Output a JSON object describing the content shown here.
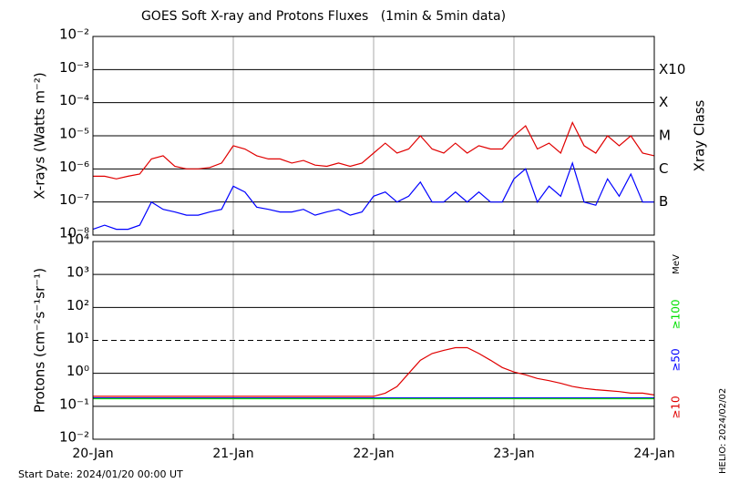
{
  "title": "GOES Soft X-ray and Protons Fluxes   (1min & 5min data)",
  "footer": "Start Date: 2024/01/20 00:00 UT",
  "side_note": "HELIO: 2024/02/02",
  "chart_data": [
    {
      "type": "line",
      "ylabel": "X-rays (Watts m⁻²)",
      "y2label": "Xray Class",
      "log_y": true,
      "grid": true,
      "x": [
        0,
        2,
        4,
        6,
        8,
        10,
        12,
        14,
        16,
        18,
        20,
        22,
        24,
        26,
        28,
        30,
        32,
        34,
        36,
        38,
        40,
        42,
        44,
        46,
        48,
        50,
        52,
        54,
        56,
        58,
        60,
        62,
        64,
        66,
        68,
        70,
        72,
        74,
        76,
        78,
        80,
        82,
        84,
        86,
        88,
        90,
        92,
        94,
        96
      ],
      "xlim": [
        0,
        96
      ],
      "ylim": [
        1e-08,
        0.01
      ],
      "yticks": [
        {
          "value": 0.01,
          "label": "10⁻²"
        },
        {
          "value": 0.001,
          "label": "10⁻³"
        },
        {
          "value": 0.0001,
          "label": "10⁻⁴"
        },
        {
          "value": 1e-05,
          "label": "10⁻⁵"
        },
        {
          "value": 1e-06,
          "label": "10⁻⁶"
        },
        {
          "value": 1e-07,
          "label": "10⁻⁷"
        },
        {
          "value": 1e-08,
          "label": "10⁻⁸"
        }
      ],
      "class_labels": [
        {
          "value": 0.001,
          "label": "X10"
        },
        {
          "value": 0.0001,
          "label": "X"
        },
        {
          "value": 1e-05,
          "label": "M"
        },
        {
          "value": 1e-06,
          "label": "C"
        },
        {
          "value": 1e-07,
          "label": "B"
        }
      ],
      "series": [
        {
          "color": "#e00000",
          "values": [
            6e-07,
            6e-07,
            5e-07,
            6e-07,
            7e-07,
            2e-06,
            2.5e-06,
            1.2e-06,
            1e-06,
            1e-06,
            1.1e-06,
            1.5e-06,
            5e-06,
            4e-06,
            2.5e-06,
            2e-06,
            2e-06,
            1.5e-06,
            1.8e-06,
            1.3e-06,
            1.2e-06,
            1.5e-06,
            1.2e-06,
            1.5e-06,
            3e-06,
            6e-06,
            3e-06,
            4e-06,
            1e-05,
            4e-06,
            3e-06,
            6e-06,
            3e-06,
            5e-06,
            4e-06,
            4e-06,
            1e-05,
            2e-05,
            4e-06,
            6e-06,
            3e-06,
            2.5e-05,
            5e-06,
            3e-06,
            1e-05,
            5e-06,
            1e-05,
            3e-06,
            2.5e-06
          ]
        },
        {
          "color": "#0000ff",
          "values": [
            1.5e-08,
            2e-08,
            1.5e-08,
            1.5e-08,
            2e-08,
            1e-07,
            6e-08,
            5e-08,
            4e-08,
            4e-08,
            5e-08,
            6e-08,
            3e-07,
            2e-07,
            7e-08,
            6e-08,
            5e-08,
            5e-08,
            6e-08,
            4e-08,
            5e-08,
            6e-08,
            4e-08,
            5e-08,
            1.5e-07,
            2e-07,
            1e-07,
            1.5e-07,
            4e-07,
            1e-07,
            1e-07,
            2e-07,
            1e-07,
            2e-07,
            1e-07,
            1e-07,
            5e-07,
            1e-06,
            1e-07,
            3e-07,
            1.5e-07,
            1.5e-06,
            1e-07,
            8e-08,
            5e-07,
            1.5e-07,
            7e-07,
            1e-07,
            1e-07
          ]
        }
      ]
    },
    {
      "type": "line",
      "ylabel": "Protons (cm⁻²s⁻¹sr⁻¹)",
      "unit_label": "MeV",
      "log_y": true,
      "grid": true,
      "threshold": 10,
      "x": [
        0,
        2,
        4,
        6,
        8,
        10,
        12,
        14,
        16,
        18,
        20,
        22,
        24,
        26,
        28,
        30,
        32,
        34,
        36,
        38,
        40,
        42,
        44,
        46,
        48,
        50,
        52,
        54,
        56,
        58,
        60,
        62,
        64,
        66,
        68,
        70,
        72,
        74,
        76,
        78,
        80,
        82,
        84,
        86,
        88,
        90,
        92,
        94,
        96
      ],
      "xlim": [
        0,
        96
      ],
      "xticks": [
        {
          "value": 0,
          "label": "20-Jan"
        },
        {
          "value": 24,
          "label": "21-Jan"
        },
        {
          "value": 48,
          "label": "22-Jan"
        },
        {
          "value": 72,
          "label": "23-Jan"
        },
        {
          "value": 96,
          "label": "24-Jan"
        }
      ],
      "ylim": [
        0.01,
        10000.0
      ],
      "yticks": [
        {
          "value": 10000.0,
          "label": "10⁴"
        },
        {
          "value": 1000.0,
          "label": "10³"
        },
        {
          "value": 100.0,
          "label": "10²"
        },
        {
          "value": 10,
          "label": "10¹"
        },
        {
          "value": 1,
          "label": "10⁰"
        },
        {
          "value": 0.1,
          "label": "10⁻¹"
        },
        {
          "value": 0.01,
          "label": "10⁻²"
        }
      ],
      "series": [
        {
          "name": "≥10",
          "color": "#e00000",
          "values": [
            0.2,
            0.2,
            0.2,
            0.2,
            0.2,
            0.2,
            0.2,
            0.2,
            0.2,
            0.2,
            0.2,
            0.2,
            0.2,
            0.2,
            0.2,
            0.2,
            0.2,
            0.2,
            0.2,
            0.2,
            0.2,
            0.2,
            0.2,
            0.2,
            0.2,
            0.25,
            0.4,
            1,
            2.5,
            4,
            5,
            6,
            6,
            4,
            2.5,
            1.5,
            1.1,
            0.9,
            0.7,
            0.6,
            0.5,
            0.4,
            0.35,
            0.32,
            0.3,
            0.28,
            0.25,
            0.25,
            0.22
          ]
        },
        {
          "name": "≥50",
          "color": "#0000ff",
          "values": [
            0.18,
            0.18,
            0.18,
            0.18,
            0.18,
            0.18,
            0.18,
            0.18,
            0.18,
            0.18,
            0.18,
            0.18,
            0.18,
            0.18,
            0.18,
            0.18,
            0.18,
            0.18,
            0.18,
            0.18,
            0.18,
            0.18,
            0.18,
            0.18,
            0.18,
            0.18,
            0.18,
            0.18,
            0.18,
            0.18,
            0.18,
            0.18,
            0.18,
            0.18,
            0.18,
            0.18,
            0.18,
            0.18,
            0.18,
            0.18,
            0.18,
            0.18,
            0.18,
            0.18,
            0.18,
            0.18,
            0.18,
            0.18,
            0.18
          ]
        },
        {
          "name": "≥100",
          "color": "#00e000",
          "values": [
            0.17,
            0.17,
            0.17,
            0.17,
            0.17,
            0.17,
            0.17,
            0.17,
            0.17,
            0.17,
            0.17,
            0.17,
            0.17,
            0.17,
            0.17,
            0.17,
            0.17,
            0.17,
            0.17,
            0.17,
            0.17,
            0.17,
            0.17,
            0.17,
            0.17,
            0.17,
            0.17,
            0.17,
            0.17,
            0.17,
            0.17,
            0.17,
            0.17,
            0.17,
            0.17,
            0.17,
            0.17,
            0.17,
            0.17,
            0.17,
            0.17,
            0.17,
            0.17,
            0.17,
            0.17,
            0.17,
            0.17,
            0.17,
            0.17
          ]
        }
      ]
    }
  ]
}
